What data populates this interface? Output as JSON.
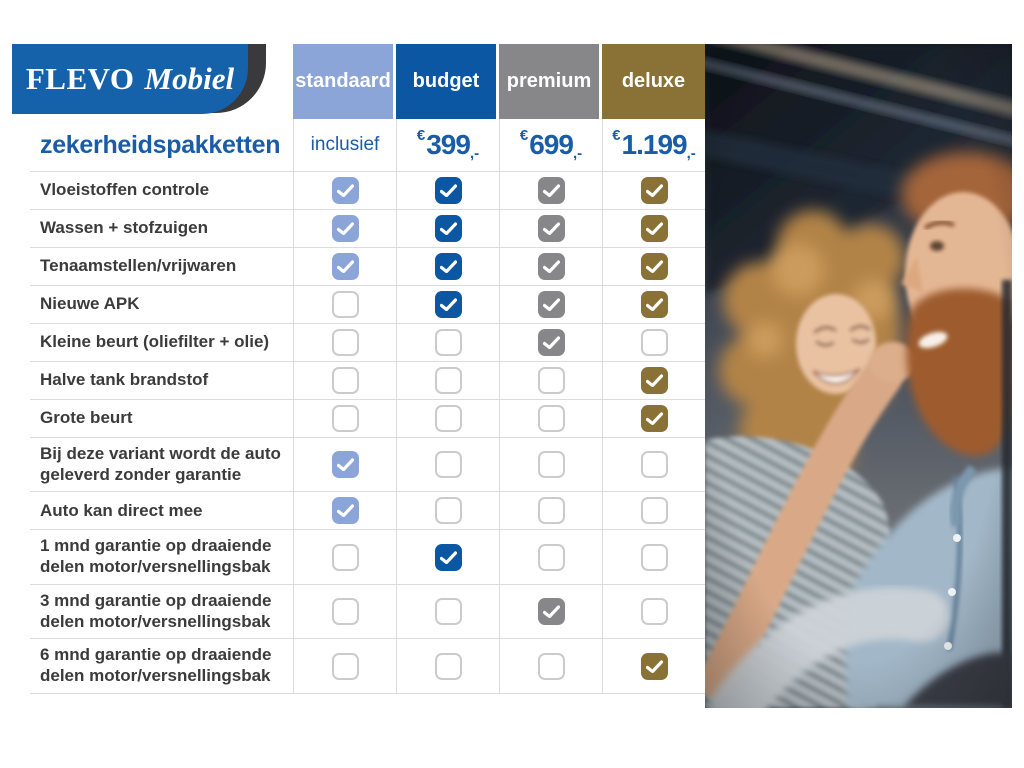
{
  "logo": {
    "brand_primary": "FLEVO",
    "brand_secondary": "Mobiel"
  },
  "table": {
    "columns": [
      {
        "id": "standaard",
        "label": "standaard",
        "color": "#8ca5d9"
      },
      {
        "id": "budget",
        "label": "budget",
        "color": "#0b57a4"
      },
      {
        "id": "premium",
        "label": "premium",
        "color": "#87878a"
      },
      {
        "id": "deluxe",
        "label": "deluxe",
        "color": "#8a7136"
      }
    ],
    "price_row": {
      "title": "zekerheidspakketten",
      "values": [
        {
          "text": "inclusief"
        },
        {
          "currency": "€",
          "amount": "399",
          "suffix": ",-"
        },
        {
          "currency": "€",
          "amount": "699",
          "suffix": ",-"
        },
        {
          "currency": "€",
          "amount": "1.199",
          "suffix": ",-"
        }
      ]
    },
    "rows": [
      {
        "label": "Vloeistoffen controle",
        "checks": [
          true,
          true,
          true,
          true
        ]
      },
      {
        "label": "Wassen + stofzuigen",
        "checks": [
          true,
          true,
          true,
          true
        ]
      },
      {
        "label": "Tenaamstellen/vrijwaren",
        "checks": [
          true,
          true,
          true,
          true
        ]
      },
      {
        "label": "Nieuwe APK",
        "checks": [
          false,
          true,
          true,
          true
        ]
      },
      {
        "label": "Kleine beurt (oliefilter + olie)",
        "checks": [
          false,
          false,
          true,
          false
        ]
      },
      {
        "label": "Halve tank brandstof",
        "checks": [
          false,
          false,
          false,
          true
        ]
      },
      {
        "label": "Grote beurt",
        "checks": [
          false,
          false,
          false,
          true
        ]
      },
      {
        "label": "Bij deze variant wordt de auto geleverd zonder garantie",
        "checks": [
          true,
          false,
          false,
          false
        ]
      },
      {
        "label": "Auto kan direct mee",
        "checks": [
          true,
          false,
          false,
          false
        ]
      },
      {
        "label": "1 mnd garantie op draaiende delen motor/versnellingsbak",
        "checks": [
          false,
          true,
          false,
          false
        ]
      },
      {
        "label": "3 mnd garantie op draaiende delen motor/versnellingsbak",
        "checks": [
          false,
          false,
          true,
          false
        ]
      },
      {
        "label": "6 mnd garantie op draaiende delen motor/versnellingsbak",
        "checks": [
          false,
          false,
          false,
          true
        ]
      }
    ]
  },
  "colors": {
    "logo_blue": "#1562ab",
    "logo_swoosh": "#3a3a3c",
    "accent_text": "#1a5ca6",
    "label_text": "#3b3b3b",
    "grid_line": "#dcdcdc",
    "checkbox_empty_border": "#cbcbcb"
  }
}
